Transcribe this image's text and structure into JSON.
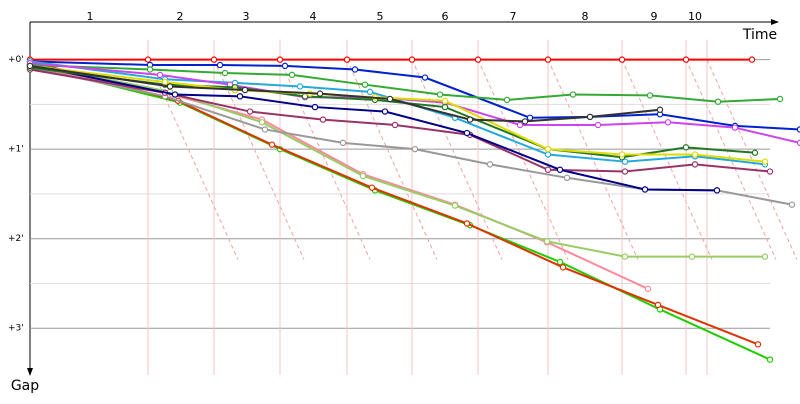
{
  "chart_data": {
    "type": "line",
    "x_label": "Time",
    "y_label": "Gap",
    "xlim": [
      0,
      770
    ],
    "ylim": [
      -0.42,
      3.5
    ],
    "xticks": [
      {
        "value": 60,
        "label": "1"
      },
      {
        "value": 150,
        "label": "2"
      },
      {
        "value": 216,
        "label": "3"
      },
      {
        "value": 283,
        "label": "4"
      },
      {
        "value": 350,
        "label": "5"
      },
      {
        "value": 415,
        "label": "6"
      },
      {
        "value": 483,
        "label": "7"
      },
      {
        "value": 555,
        "label": "8"
      },
      {
        "value": 624,
        "label": "9"
      },
      {
        "value": 665,
        "label": "10"
      }
    ],
    "lap_lines": [
      118,
      184,
      250,
      317,
      382,
      448,
      518,
      592,
      656,
      677
    ],
    "yticks": [
      {
        "value": 0,
        "label": "+0'"
      },
      {
        "value": 1,
        "label": "+1'"
      },
      {
        "value": 2,
        "label": "+2'"
      },
      {
        "value": 3,
        "label": "+3'"
      }
    ],
    "minor_yticks": [
      0.5,
      1.5,
      2.5
    ],
    "y_inverted": true,
    "grid": true,
    "series": [
      {
        "color": "#ff0000",
        "x": [
          0,
          118,
          184,
          250,
          317,
          382,
          448,
          518,
          592,
          656,
          722
        ],
        "values": [
          0,
          0,
          0,
          0,
          0,
          0,
          0,
          0,
          0,
          0,
          0
        ]
      },
      {
        "color": "#22cc00",
        "x": [
          0,
          150,
          250,
          345,
          440,
          530,
          630,
          740
        ],
        "values": [
          0.06,
          0.48,
          1.0,
          1.46,
          1.85,
          2.26,
          2.79,
          3.35
        ]
      },
      {
        "color": "#dd3300",
        "x": [
          0,
          148,
          242,
          342,
          437,
          533,
          628,
          728
        ],
        "values": [
          0.02,
          0.46,
          0.95,
          1.43,
          1.83,
          2.32,
          2.74,
          3.18
        ]
      },
      {
        "color": "#ff8899",
        "x": [
          0,
          142,
          232,
          333,
          425,
          517,
          618
        ],
        "values": [
          0.09,
          0.39,
          0.67,
          1.28,
          1.62,
          2.04,
          2.56
        ]
      },
      {
        "color": "#99cc66",
        "x": [
          0,
          140,
          232,
          333,
          425,
          517,
          595,
          662,
          735
        ],
        "values": [
          0.05,
          0.36,
          0.7,
          1.3,
          1.63,
          2.03,
          2.2,
          2.2,
          2.2
        ]
      },
      {
        "color": "#999999",
        "x": [
          0,
          135,
          235,
          313,
          385,
          460,
          537,
          615,
          687,
          762
        ],
        "values": [
          0.09,
          0.41,
          0.78,
          0.93,
          1.0,
          1.17,
          1.32,
          1.45,
          1.46,
          1.62
        ]
      },
      {
        "color": "#993366",
        "x": [
          0,
          135,
          220,
          293,
          365,
          440,
          518,
          595,
          665,
          740
        ],
        "values": [
          0.11,
          0.37,
          0.58,
          0.67,
          0.73,
          0.84,
          1.23,
          1.25,
          1.17,
          1.25
        ]
      },
      {
        "color": "#0022cc",
        "x": [
          0,
          120,
          190,
          255,
          325,
          395,
          500,
          560,
          630,
          705,
          770
        ],
        "values": [
          0.02,
          0.06,
          0.06,
          0.07,
          0.11,
          0.2,
          0.65,
          0.64,
          0.61,
          0.74,
          0.78
        ]
      },
      {
        "color": "#000088",
        "x": [
          0,
          145,
          210,
          285,
          355,
          437,
          530,
          615,
          687
        ],
        "values": [
          0.06,
          0.39,
          0.41,
          0.53,
          0.58,
          0.82,
          1.23,
          1.45,
          1.46
        ]
      },
      {
        "color": "#33aa33",
        "x": [
          0,
          120,
          195,
          262,
          335,
          410,
          477,
          543,
          620,
          688,
          750
        ],
        "values": [
          0.06,
          0.11,
          0.15,
          0.17,
          0.28,
          0.39,
          0.45,
          0.39,
          0.4,
          0.47,
          0.44
        ]
      },
      {
        "color": "#22aadd",
        "x": [
          0,
          135,
          205,
          270,
          340,
          425,
          518,
          595,
          665,
          735
        ],
        "values": [
          0.02,
          0.22,
          0.26,
          0.3,
          0.36,
          0.65,
          1.06,
          1.14,
          1.08,
          1.17
        ]
      },
      {
        "color": "#cc44ee",
        "x": [
          0,
          130,
          200,
          275,
          345,
          415,
          490,
          568,
          638,
          705,
          770
        ],
        "values": [
          0.04,
          0.17,
          0.28,
          0.42,
          0.42,
          0.48,
          0.73,
          0.73,
          0.7,
          0.76,
          0.93
        ]
      },
      {
        "color": "#227722",
        "x": [
          0,
          135,
          205,
          275,
          345,
          415,
          518,
          592,
          656,
          725
        ],
        "values": [
          0.09,
          0.28,
          0.31,
          0.41,
          0.45,
          0.53,
          1.0,
          1.09,
          0.98,
          1.04
        ]
      },
      {
        "color": "#dddd00",
        "x": [
          0,
          135,
          205,
          280,
          345,
          415,
          518,
          592,
          665,
          735
        ],
        "values": [
          0.07,
          0.25,
          0.34,
          0.38,
          0.42,
          0.46,
          1.0,
          1.06,
          1.06,
          1.14
        ]
      },
      {
        "color": "#333333",
        "x": [
          0,
          140,
          215,
          290,
          360,
          440,
          495,
          560,
          630
        ],
        "values": [
          0.07,
          0.3,
          0.34,
          0.38,
          0.44,
          0.67,
          0.69,
          0.64,
          0.56
        ]
      }
    ]
  }
}
